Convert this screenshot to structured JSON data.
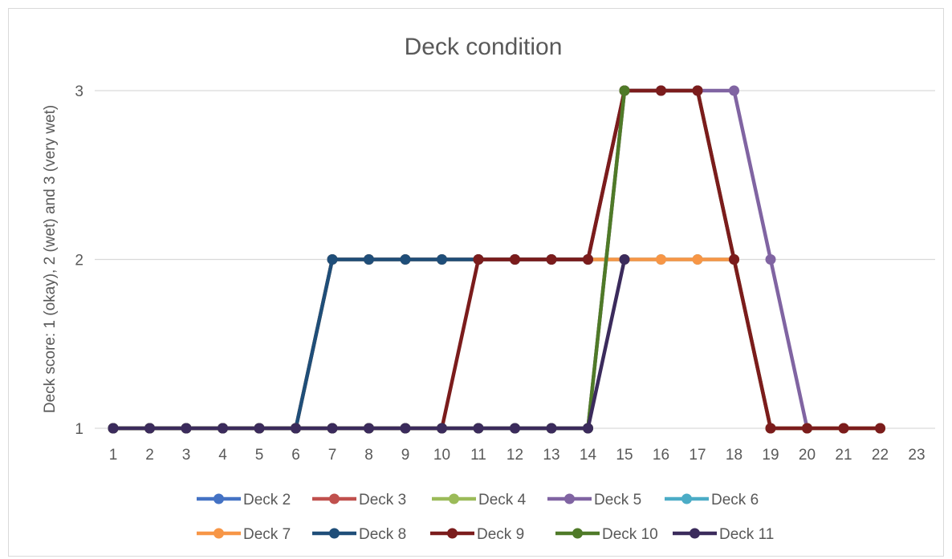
{
  "chart_data": {
    "type": "line",
    "title": "Deck condition",
    "xlabel": "",
    "ylabel": "Deck score: 1 (okay), 2 (wet) and 3 (very wet)",
    "x": [
      1,
      2,
      3,
      4,
      5,
      6,
      7,
      8,
      9,
      10,
      11,
      12,
      13,
      14,
      15,
      16,
      17,
      18,
      19,
      20,
      21,
      22,
      23
    ],
    "y_ticks": [
      1,
      2,
      3
    ],
    "ylim": [
      1,
      3
    ],
    "grid": true,
    "legend_position": "bottom",
    "series": [
      {
        "name": "Deck 2",
        "color": "#4472C4",
        "points": [
          [
            1,
            1
          ],
          [
            2,
            1
          ],
          [
            3,
            1
          ],
          [
            4,
            1
          ],
          [
            5,
            1
          ],
          [
            6,
            1
          ],
          [
            7,
            2
          ],
          [
            8,
            2
          ],
          [
            9,
            2
          ],
          [
            10,
            2
          ],
          [
            11,
            2
          ],
          [
            12,
            2
          ],
          [
            13,
            2
          ],
          [
            14,
            2
          ],
          [
            15,
            3
          ],
          [
            16,
            3
          ],
          [
            17,
            3
          ],
          [
            18,
            2
          ],
          [
            19,
            1
          ],
          [
            20,
            1
          ],
          [
            21,
            1
          ],
          [
            22,
            1
          ]
        ]
      },
      {
        "name": "Deck 3",
        "color": "#C0504D",
        "points": [
          [
            1,
            1
          ],
          [
            2,
            1
          ],
          [
            3,
            1
          ],
          [
            4,
            1
          ],
          [
            5,
            1
          ],
          [
            6,
            1
          ],
          [
            7,
            2
          ],
          [
            8,
            2
          ],
          [
            9,
            2
          ],
          [
            10,
            2
          ],
          [
            11,
            2
          ],
          [
            12,
            2
          ],
          [
            13,
            2
          ],
          [
            14,
            2
          ],
          [
            15,
            3
          ],
          [
            16,
            3
          ],
          [
            17,
            3
          ],
          [
            18,
            2
          ],
          [
            19,
            1
          ],
          [
            20,
            1
          ],
          [
            21,
            1
          ],
          [
            22,
            1
          ]
        ]
      },
      {
        "name": "Deck 4",
        "color": "#9BBB59",
        "points": [
          [
            1,
            1
          ],
          [
            2,
            1
          ],
          [
            3,
            1
          ],
          [
            4,
            1
          ],
          [
            5,
            1
          ],
          [
            6,
            1
          ],
          [
            7,
            1
          ],
          [
            8,
            1
          ],
          [
            9,
            1
          ],
          [
            10,
            1
          ],
          [
            11,
            1
          ],
          [
            12,
            1
          ],
          [
            13,
            1
          ],
          [
            14,
            1
          ],
          [
            15,
            3
          ],
          [
            16,
            3
          ],
          [
            17,
            3
          ],
          [
            18,
            2
          ],
          [
            19,
            1
          ],
          [
            20,
            1
          ],
          [
            21,
            1
          ],
          [
            22,
            1
          ]
        ]
      },
      {
        "name": "Deck 5",
        "color": "#8064A2",
        "points": [
          [
            1,
            1
          ],
          [
            2,
            1
          ],
          [
            3,
            1
          ],
          [
            4,
            1
          ],
          [
            5,
            1
          ],
          [
            6,
            1
          ],
          [
            7,
            1
          ],
          [
            8,
            1
          ],
          [
            9,
            1
          ],
          [
            10,
            1
          ],
          [
            11,
            1
          ],
          [
            12,
            1
          ],
          [
            13,
            1
          ],
          [
            14,
            1
          ],
          [
            15,
            3
          ],
          [
            16,
            3
          ],
          [
            17,
            3
          ],
          [
            18,
            3
          ],
          [
            19,
            2
          ],
          [
            20,
            1
          ]
        ]
      },
      {
        "name": "Deck 6",
        "color": "#4BACC6",
        "points": [
          [
            1,
            1
          ],
          [
            2,
            1
          ],
          [
            3,
            1
          ],
          [
            4,
            1
          ],
          [
            5,
            1
          ],
          [
            6,
            1
          ],
          [
            7,
            2
          ],
          [
            8,
            2
          ],
          [
            9,
            2
          ],
          [
            10,
            2
          ],
          [
            11,
            2
          ],
          [
            12,
            2
          ],
          [
            13,
            2
          ],
          [
            14,
            2
          ],
          [
            15,
            2
          ],
          [
            16,
            2
          ],
          [
            17,
            2
          ],
          [
            18,
            2
          ],
          [
            19,
            1
          ],
          [
            20,
            1
          ],
          [
            21,
            1
          ],
          [
            22,
            1
          ]
        ]
      },
      {
        "name": "Deck 7",
        "color": "#F79646",
        "points": [
          [
            1,
            1
          ],
          [
            2,
            1
          ],
          [
            3,
            1
          ],
          [
            4,
            1
          ],
          [
            5,
            1
          ],
          [
            6,
            1
          ],
          [
            7,
            2
          ],
          [
            8,
            2
          ],
          [
            9,
            2
          ],
          [
            10,
            2
          ],
          [
            11,
            2
          ],
          [
            12,
            2
          ],
          [
            13,
            2
          ],
          [
            14,
            2
          ],
          [
            15,
            2
          ],
          [
            16,
            2
          ],
          [
            17,
            2
          ],
          [
            18,
            2
          ],
          [
            19,
            1
          ],
          [
            20,
            1
          ],
          [
            21,
            1
          ],
          [
            22,
            1
          ]
        ]
      },
      {
        "name": "Deck 8",
        "color": "#1F4E79",
        "points": [
          [
            1,
            1
          ],
          [
            2,
            1
          ],
          [
            3,
            1
          ],
          [
            4,
            1
          ],
          [
            5,
            1
          ],
          [
            6,
            1
          ],
          [
            7,
            2
          ],
          [
            8,
            2
          ],
          [
            9,
            2
          ],
          [
            10,
            2
          ],
          [
            11,
            2
          ],
          [
            12,
            2
          ],
          [
            13,
            2
          ],
          [
            14,
            2
          ]
        ]
      },
      {
        "name": "Deck 9",
        "color": "#7B1C1C",
        "points": [
          [
            1,
            1
          ],
          [
            2,
            1
          ],
          [
            3,
            1
          ],
          [
            4,
            1
          ],
          [
            5,
            1
          ],
          [
            6,
            1
          ],
          [
            7,
            1
          ],
          [
            8,
            1
          ],
          [
            9,
            1
          ],
          [
            10,
            1
          ],
          [
            11,
            2
          ],
          [
            12,
            2
          ],
          [
            13,
            2
          ],
          [
            14,
            2
          ],
          [
            15,
            3
          ],
          [
            16,
            3
          ],
          [
            17,
            3
          ],
          [
            18,
            2
          ],
          [
            19,
            1
          ],
          [
            20,
            1
          ],
          [
            21,
            1
          ],
          [
            22,
            1
          ]
        ]
      },
      {
        "name": "Deck 10",
        "color": "#4F7A28",
        "points": [
          [
            1,
            1
          ],
          [
            2,
            1
          ],
          [
            3,
            1
          ],
          [
            4,
            1
          ],
          [
            5,
            1
          ],
          [
            6,
            1
          ],
          [
            7,
            1
          ],
          [
            8,
            1
          ],
          [
            9,
            1
          ],
          [
            10,
            1
          ],
          [
            11,
            1
          ],
          [
            12,
            1
          ],
          [
            13,
            1
          ],
          [
            14,
            1
          ],
          [
            15,
            3
          ]
        ]
      },
      {
        "name": "Deck 11",
        "color": "#3B2B5C",
        "points": [
          [
            1,
            1
          ],
          [
            2,
            1
          ],
          [
            3,
            1
          ],
          [
            4,
            1
          ],
          [
            5,
            1
          ],
          [
            6,
            1
          ],
          [
            7,
            1
          ],
          [
            8,
            1
          ],
          [
            9,
            1
          ],
          [
            10,
            1
          ],
          [
            11,
            1
          ],
          [
            12,
            1
          ],
          [
            13,
            1
          ],
          [
            14,
            1
          ],
          [
            15,
            2
          ]
        ]
      }
    ]
  }
}
